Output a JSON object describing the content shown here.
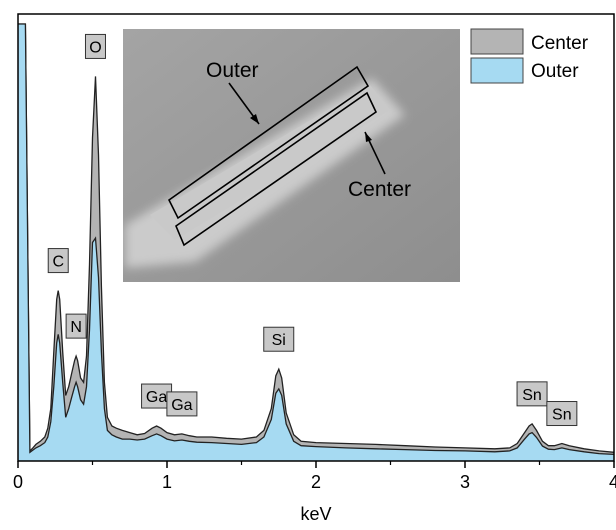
{
  "chart_data": {
    "type": "area",
    "xlabel": "keV",
    "xlim": [
      0,
      4
    ],
    "x_ticks": [
      "0",
      "1",
      "2",
      "3",
      "4"
    ],
    "legend_position": "top-right",
    "series": [
      {
        "name": "Center",
        "color": "#b4b4b4",
        "x": [
          0.0,
          0.05,
          0.08,
          0.1,
          0.12,
          0.15,
          0.18,
          0.2,
          0.22,
          0.24,
          0.26,
          0.27,
          0.28,
          0.3,
          0.32,
          0.34,
          0.36,
          0.38,
          0.39,
          0.4,
          0.42,
          0.44,
          0.46,
          0.48,
          0.5,
          0.52,
          0.54,
          0.56,
          0.58,
          0.6,
          0.63,
          0.66,
          0.7,
          0.75,
          0.8,
          0.85,
          0.9,
          0.93,
          0.96,
          1.0,
          1.05,
          1.1,
          1.15,
          1.2,
          1.3,
          1.4,
          1.5,
          1.6,
          1.65,
          1.7,
          1.73,
          1.75,
          1.77,
          1.8,
          1.85,
          1.9,
          2.0,
          2.2,
          2.4,
          2.6,
          2.8,
          3.0,
          3.2,
          3.3,
          3.35,
          3.4,
          3.43,
          3.45,
          3.48,
          3.52,
          3.56,
          3.6,
          3.65,
          3.7,
          3.8,
          3.9,
          4.0
        ],
        "values": [
          100,
          100,
          2.3,
          3.0,
          3.8,
          4.5,
          5.5,
          7.5,
          12.0,
          25.0,
          37.0,
          39.0,
          37.0,
          25.0,
          15.0,
          17.0,
          20.0,
          23.0,
          24.0,
          23.0,
          19.0,
          18.0,
          24.0,
          45.0,
          74.0,
          88.0,
          70.0,
          40.0,
          18.0,
          10.0,
          8.0,
          7.5,
          7.0,
          6.5,
          6.0,
          6.3,
          7.5,
          8.0,
          7.5,
          6.5,
          6.0,
          6.2,
          5.8,
          5.5,
          5.5,
          5.2,
          5.0,
          5.5,
          7.0,
          12.0,
          19.5,
          21.0,
          19.0,
          11.0,
          6.0,
          4.5,
          4.2,
          4.0,
          3.8,
          3.5,
          3.2,
          3.0,
          2.8,
          3.0,
          4.0,
          6.5,
          8.0,
          8.5,
          7.0,
          4.5,
          3.5,
          3.5,
          4.0,
          3.5,
          2.8,
          2.3,
          2.0
        ]
      },
      {
        "name": "Outer",
        "color": "#a6daf2",
        "x": [
          0.0,
          0.05,
          0.08,
          0.1,
          0.12,
          0.15,
          0.18,
          0.2,
          0.22,
          0.24,
          0.26,
          0.27,
          0.28,
          0.3,
          0.32,
          0.34,
          0.36,
          0.38,
          0.39,
          0.4,
          0.42,
          0.44,
          0.46,
          0.48,
          0.5,
          0.52,
          0.54,
          0.56,
          0.58,
          0.6,
          0.63,
          0.66,
          0.7,
          0.75,
          0.8,
          0.85,
          0.9,
          0.93,
          0.96,
          1.0,
          1.05,
          1.1,
          1.15,
          1.2,
          1.3,
          1.4,
          1.5,
          1.6,
          1.65,
          1.7,
          1.73,
          1.75,
          1.77,
          1.8,
          1.85,
          1.9,
          2.0,
          2.2,
          2.4,
          2.6,
          2.8,
          3.0,
          3.2,
          3.3,
          3.35,
          3.4,
          3.43,
          3.45,
          3.48,
          3.52,
          3.56,
          3.6,
          3.65,
          3.7,
          3.8,
          3.9,
          4.0
        ],
        "values": [
          100,
          100,
          2.0,
          2.5,
          3.0,
          3.5,
          4.2,
          5.5,
          9.0,
          17.0,
          27.0,
          29.0,
          27.0,
          18.0,
          10.0,
          12.0,
          14.5,
          17.0,
          18.0,
          17.0,
          14.0,
          13.0,
          17.0,
          30.0,
          50.0,
          51.0,
          42.0,
          25.0,
          12.0,
          7.0,
          6.0,
          5.5,
          5.0,
          5.0,
          4.8,
          5.0,
          5.8,
          6.2,
          5.8,
          5.0,
          4.6,
          4.8,
          4.5,
          4.3,
          4.2,
          4.0,
          3.8,
          4.2,
          5.5,
          9.5,
          15.5,
          16.5,
          15.0,
          8.5,
          4.5,
          3.5,
          3.3,
          3.0,
          2.8,
          2.6,
          2.4,
          2.3,
          2.1,
          2.3,
          3.0,
          5.0,
          6.2,
          6.5,
          5.4,
          3.4,
          2.7,
          2.6,
          3.0,
          2.6,
          2.1,
          1.7,
          1.5
        ]
      }
    ],
    "peak_labels": [
      {
        "text": "C",
        "x": 0.27,
        "y": 39
      },
      {
        "text": "N",
        "x": 0.39,
        "y": 24
      },
      {
        "text": "O",
        "x": 0.52,
        "y": 88
      },
      {
        "text": "Ga",
        "x": 0.93,
        "y": 8
      },
      {
        "text": "Ga",
        "x": 1.1,
        "y": 6.2
      },
      {
        "text": "Si",
        "x": 1.75,
        "y": 21
      },
      {
        "text": "Sn",
        "x": 3.45,
        "y": 8.5
      },
      {
        "text": "Sn",
        "x": 3.65,
        "y": 4
      }
    ],
    "inset": {
      "annotations": [
        {
          "text": "Outer"
        },
        {
          "text": "Center"
        }
      ]
    }
  }
}
